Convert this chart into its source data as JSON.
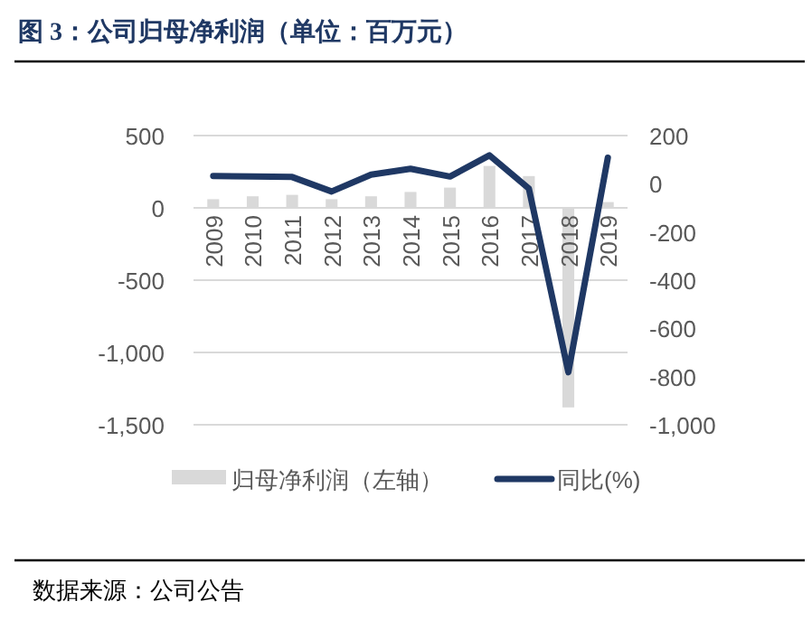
{
  "chart_data": {
    "type": "bar",
    "title": "图 3：公司归母净利润（单位：百万元）",
    "categories": [
      "2009",
      "2010",
      "2011",
      "2012",
      "2013",
      "2014",
      "2015",
      "2016",
      "2017",
      "2018",
      "2019"
    ],
    "series": [
      {
        "name": "归母净利润（左轴）",
        "color": "#d9d9d9",
        "values": [
          60,
          80,
          90,
          60,
          80,
          110,
          140,
          290,
          220,
          -1380,
          40
        ]
      },
      {
        "name": "同比(%)",
        "type": "line",
        "axis": "y2",
        "color": "#1f3864",
        "values": [
          32,
          30,
          28,
          -32,
          38,
          62,
          30,
          118,
          -20,
          -782,
          108
        ]
      }
    ],
    "ylim": [
      -1500,
      500
    ],
    "yticks": [
      500,
      0,
      {
        "value": -500,
        "label": "-500"
      },
      {
        "value": -1000,
        "label": "-1,000"
      },
      {
        "value": -1500,
        "label": "-1,500"
      }
    ],
    "y2lim": [
      -1000,
      200
    ],
    "y2ticks": [
      200,
      0,
      {
        "value": -200,
        "label": "-200"
      },
      {
        "value": -400,
        "label": "-400"
      },
      {
        "value": -600,
        "label": "-600"
      },
      {
        "value": -800,
        "label": "-800"
      },
      {
        "value": -1000,
        "label": "-1,000"
      }
    ],
    "grid": "y",
    "legend": "bottom",
    "marker": "none",
    "annotations": [
      "数据来源：公司公告"
    ]
  }
}
